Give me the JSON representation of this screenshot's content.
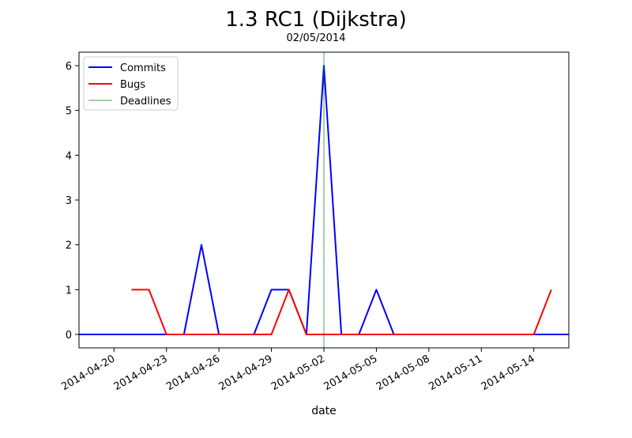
{
  "chart_data": {
    "type": "line",
    "title": "1.3 RC1 (Dijkstra)",
    "subtitle": "02/05/2014",
    "xlabel": "date",
    "ylabel": "",
    "xlim": [
      "2014-04-18",
      "2014-05-16"
    ],
    "ylim": [
      -0.3,
      6.3
    ],
    "xticks": [
      "2014-04-20",
      "2014-04-23",
      "2014-04-26",
      "2014-04-29",
      "2014-05-02",
      "2014-05-05",
      "2014-05-08",
      "2014-05-11",
      "2014-05-14"
    ],
    "yticks": [
      0,
      1,
      2,
      3,
      4,
      5,
      6
    ],
    "legend_position": "top-left",
    "grid": false,
    "series": [
      {
        "name": "Commits",
        "color": "#0000ff",
        "x": [
          "2014-04-18",
          "2014-04-24",
          "2014-04-25",
          "2014-04-26",
          "2014-04-28",
          "2014-04-29",
          "2014-04-30",
          "2014-05-01",
          "2014-05-02",
          "2014-05-03",
          "2014-05-04",
          "2014-05-05",
          "2014-05-06",
          "2014-05-16"
        ],
        "y": [
          0,
          0,
          2,
          0,
          0,
          1,
          1,
          0,
          6,
          0,
          0,
          1,
          0,
          0
        ]
      },
      {
        "name": "Bugs",
        "color": "#ff0000",
        "x": [
          "2014-04-21",
          "2014-04-22",
          "2014-04-23",
          "2014-04-29",
          "2014-04-30",
          "2014-05-01",
          "2014-05-14",
          "2014-05-15"
        ],
        "y": [
          1,
          1,
          0,
          0,
          1,
          0,
          0,
          1
        ]
      }
    ],
    "deadlines": {
      "name": "Deadlines",
      "color": "#008000",
      "x": [
        "2014-05-02"
      ]
    }
  }
}
